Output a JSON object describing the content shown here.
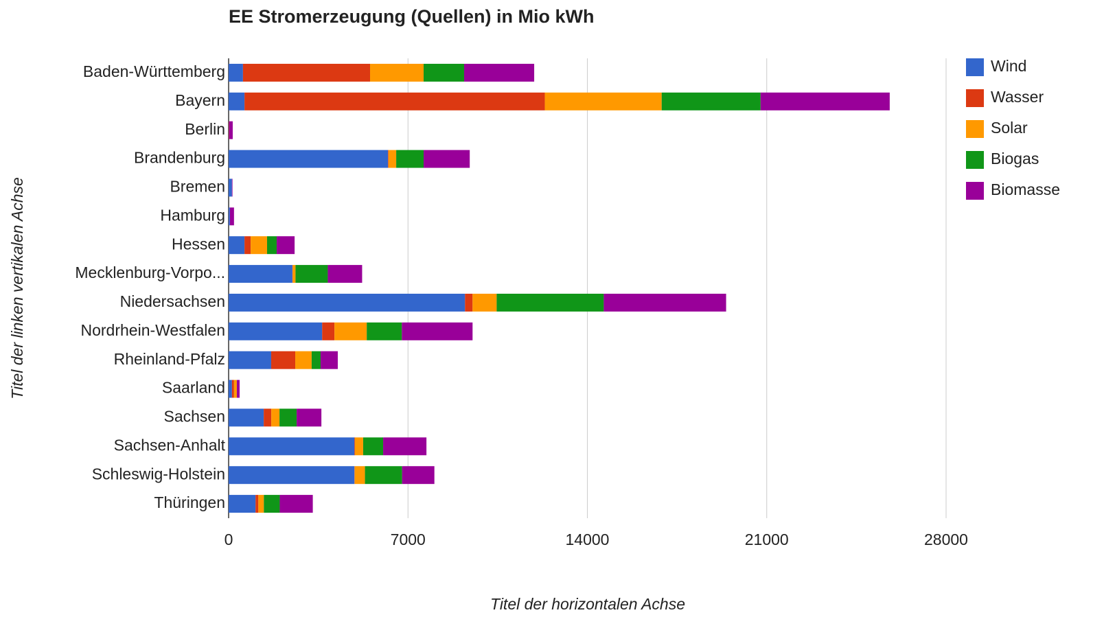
{
  "chart_data": {
    "type": "bar",
    "orientation": "horizontal",
    "stacked": true,
    "title": "EE Stromerzeugung (Quellen) in Mio kWh",
    "x_label": "Titel der horizontalen Achse",
    "y_label": "Titel der linken vertikalen Achse",
    "categories": [
      "Baden-Württemberg",
      "Bayern",
      "Berlin",
      "Brandenburg",
      "Bremen",
      "Hamburg",
      "Hessen",
      "Mecklenburg-Vorpo...",
      "Niedersachsen",
      "Nordrhein-Westfalen",
      "Rheinland-Pfalz",
      "Saarland",
      "Sachsen",
      "Sachsen-Anhalt",
      "Schleswig-Holstein",
      "Thüringen"
    ],
    "series": [
      {
        "name": "Wind",
        "color": "#3366cc",
        "values": [
          560,
          620,
          0,
          6220,
          130,
          50,
          620,
          2490,
          9225,
          3650,
          1660,
          130,
          1370,
          4910,
          4910,
          1050
        ]
      },
      {
        "name": "Wasser",
        "color": "#dc3912",
        "values": [
          4960,
          11720,
          0,
          20,
          0,
          0,
          240,
          10,
          295,
          480,
          940,
          80,
          295,
          20,
          10,
          110
        ]
      },
      {
        "name": "Solar",
        "color": "#ff9900",
        "values": [
          2090,
          4560,
          10,
          300,
          0,
          0,
          640,
          110,
          940,
          1260,
          640,
          110,
          320,
          320,
          400,
          215
        ]
      },
      {
        "name": "Biogas",
        "color": "#109618",
        "values": [
          1580,
          3860,
          0,
          1070,
          0,
          0,
          375,
          1260,
          4180,
          1370,
          350,
          0,
          670,
          780,
          1450,
          620
        ]
      },
      {
        "name": "Biomasse",
        "color": "#990099",
        "values": [
          2735,
          5040,
          150,
          1800,
          20,
          160,
          700,
          1340,
          4775,
          2760,
          670,
          110,
          965,
          1690,
          1260,
          1290
        ]
      }
    ],
    "xlim": [
      0,
      28000
    ],
    "xticks": [
      0,
      7000,
      14000,
      21000,
      28000
    ],
    "grid": true,
    "legend": "right"
  }
}
